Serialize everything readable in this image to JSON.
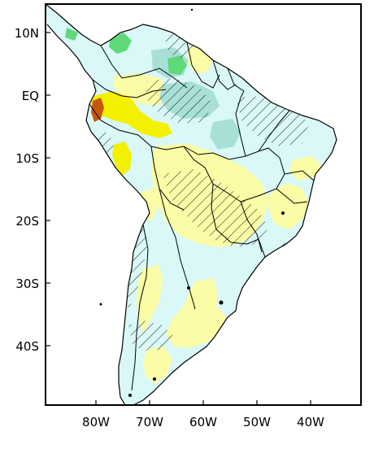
{
  "map": {
    "lat_labels": [
      "10N",
      "EQ",
      "10S",
      "20S",
      "30S",
      "40S"
    ],
    "lon_labels": [
      "80W",
      "70W",
      "60W",
      "50W",
      "40W"
    ],
    "colors": {
      "land_light": "#d9f8f7",
      "positive": "#fbfca6",
      "strong_positive": "#f3f000",
      "peak": "#c8560a",
      "negative": "#a8e0d8",
      "strong_negative": "#5fd97a",
      "ocean": "#ffffff"
    },
    "hatching": "diagonal-lines"
  }
}
